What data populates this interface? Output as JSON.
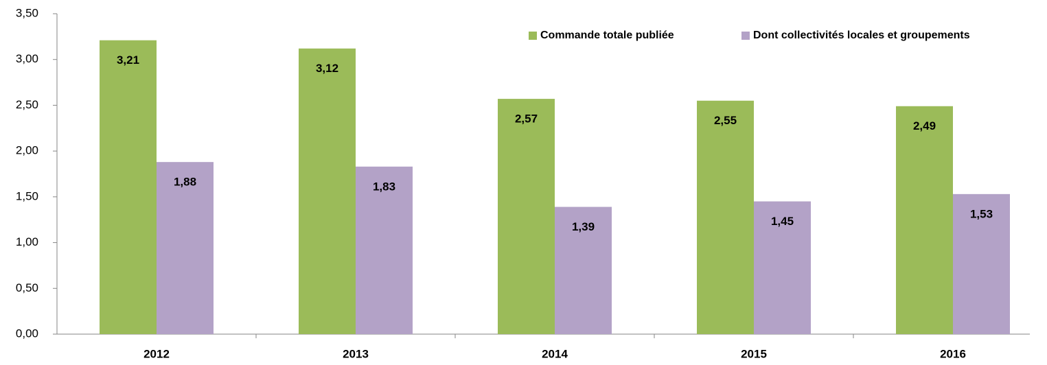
{
  "chart_data": {
    "type": "bar",
    "categories": [
      "2012",
      "2013",
      "2014",
      "2015",
      "2016"
    ],
    "series": [
      {
        "name": "Commande totale publiée",
        "color": "#9bbb59",
        "values": [
          3.21,
          3.12,
          2.57,
          2.55,
          2.49
        ],
        "value_labels": [
          "3,21",
          "3,12",
          "2,57",
          "2,55",
          "2,49"
        ]
      },
      {
        "name": "Dont collectivités locales et groupements",
        "color": "#b3a2c7",
        "values": [
          1.88,
          1.83,
          1.39,
          1.45,
          1.53
        ],
        "value_labels": [
          "1,88",
          "1,83",
          "1,39",
          "1,45",
          "1,53"
        ]
      }
    ],
    "ylim": [
      0,
      3.5
    ],
    "yticks": [
      {
        "value": 0,
        "label": "0,00"
      },
      {
        "value": 0.5,
        "label": "0,50"
      },
      {
        "value": 1,
        "label": "1,00"
      },
      {
        "value": 1.5,
        "label": "1,50"
      },
      {
        "value": 2,
        "label": "2,00"
      },
      {
        "value": 2.5,
        "label": "2,50"
      },
      {
        "value": 3,
        "label": "3,00"
      },
      {
        "value": 3.5,
        "label": "3,50"
      }
    ],
    "grid": false,
    "legend": "top-right"
  }
}
